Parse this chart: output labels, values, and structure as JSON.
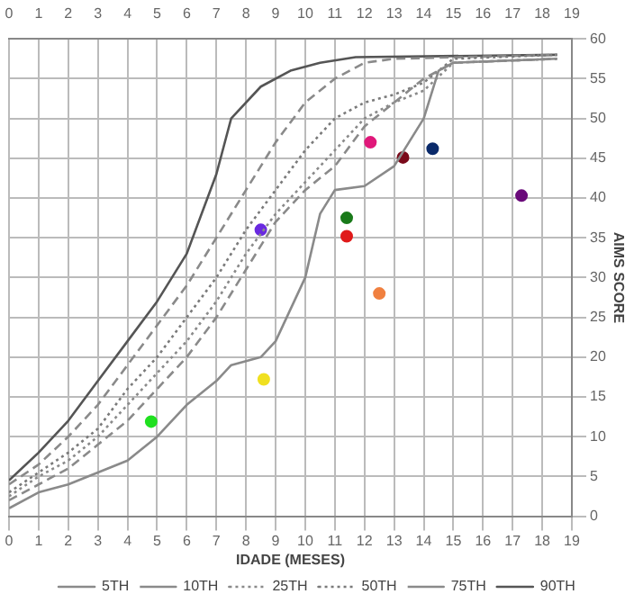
{
  "chart_data": {
    "type": "line",
    "xlabel": "IDADE (MESES)",
    "ylabel": "AIMS SCORE",
    "xlim": [
      0,
      19
    ],
    "xticks": [
      0,
      1,
      2,
      3,
      4,
      5,
      6,
      7,
      8,
      9,
      10,
      11,
      12,
      13,
      14,
      15,
      16,
      17,
      18,
      19
    ],
    "x2lim": [
      0,
      19
    ],
    "x2ticks": [
      0,
      1,
      2,
      3,
      4,
      5,
      6,
      7,
      8,
      9,
      10,
      11,
      12,
      13,
      14,
      15,
      16,
      17,
      18,
      19
    ],
    "ylim": [
      0,
      60
    ],
    "yticks": [
      0,
      5,
      10,
      15,
      20,
      25,
      30,
      35,
      40,
      45,
      50,
      55,
      60
    ],
    "grid": true,
    "legend": "bottom",
    "marker": "none",
    "series": [
      {
        "name": "5TH",
        "color": "#8a8a8a",
        "line_style": "solid",
        "x": [
          0,
          1,
          2,
          3,
          4,
          5,
          6,
          7,
          7.5,
          8.5,
          9,
          10,
          10.5,
          11,
          12,
          13,
          14,
          14.5,
          15,
          18.5
        ],
        "values": [
          1,
          3,
          4,
          5.5,
          7,
          10,
          14,
          17,
          19,
          20,
          22,
          30,
          38,
          41,
          41.5,
          44,
          50,
          56,
          57,
          57.5
        ]
      },
      {
        "name": "10TH",
        "color": "#8a8a8a",
        "line_style": "dashed",
        "x": [
          0,
          1,
          2,
          3,
          4,
          5,
          6,
          7,
          8,
          9,
          10,
          11,
          12,
          13,
          14,
          15,
          18.5
        ],
        "values": [
          2,
          4,
          6,
          9,
          12,
          16,
          20,
          25,
          31,
          37,
          41,
          44,
          49,
          52,
          55,
          57,
          57.5
        ]
      },
      {
        "name": "25TH",
        "color": "#8a8a8a",
        "line_style": "dotted",
        "x": [
          0,
          1,
          2,
          3,
          4,
          5,
          6,
          7,
          8,
          9,
          10,
          11,
          12,
          13,
          14,
          15,
          18.5
        ],
        "values": [
          2.5,
          5,
          7,
          10,
          14,
          18,
          22,
          27,
          33,
          38,
          42,
          46,
          50,
          52,
          53.5,
          57,
          57.5
        ]
      },
      {
        "name": "50TH",
        "color": "#7a7a7a",
        "line_style": "dotted",
        "x": [
          0,
          1,
          2,
          3,
          4,
          5,
          6,
          7,
          8,
          9,
          10,
          11,
          12,
          13,
          14,
          15,
          18.5
        ],
        "values": [
          3,
          5.5,
          8,
          11,
          16,
          20,
          25,
          30,
          36,
          41,
          46,
          50,
          52,
          53,
          54.5,
          57.5,
          58
        ]
      },
      {
        "name": "75TH",
        "color": "#8a8a8a",
        "line_style": "dashed",
        "x": [
          0,
          1,
          2,
          3,
          4,
          5,
          6,
          7,
          8,
          9,
          10,
          11,
          12,
          13,
          18.5
        ],
        "values": [
          4,
          6.5,
          10,
          14,
          19,
          24,
          29,
          35,
          41,
          47,
          52,
          55,
          57,
          57.5,
          58
        ]
      },
      {
        "name": "90TH",
        "color": "#555555",
        "line_style": "solid",
        "x": [
          0,
          1,
          2,
          3,
          4,
          5,
          6,
          7,
          7.5,
          8.5,
          9.5,
          10.5,
          11.7,
          18.5
        ],
        "values": [
          4.5,
          8,
          12,
          17,
          22,
          27,
          33,
          43,
          50,
          54,
          56,
          57,
          57.7,
          58
        ]
      },
      {
        "type": "scatter",
        "marker": "circle",
        "x": [
          12.2,
          13.3,
          14.3,
          17.3,
          8.5,
          11.4,
          11.4,
          12.5,
          8.6,
          4.8
        ],
        "values": [
          47,
          45.1,
          46.2,
          40.3,
          36,
          37.5,
          35.2,
          28,
          17.2,
          11.9
        ],
        "colors": [
          "#e0187a",
          "#7a0a1a",
          "#0a2a6a",
          "#6a0a7a",
          "#6a2ae0",
          "#1a7a1a",
          "#e01a1a",
          "#f08040",
          "#f0e020",
          "#20e020"
        ]
      }
    ]
  }
}
